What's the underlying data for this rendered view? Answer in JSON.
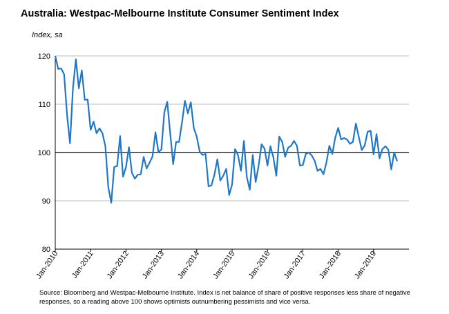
{
  "chart_data": {
    "type": "line",
    "title": "Australia: Westpac-Melbourne Institute Consumer Sentiment Index",
    "subtitle": "Index, sa",
    "ylim": [
      80,
      120
    ],
    "yticks": [
      80,
      90,
      100,
      110,
      120
    ],
    "reference_line": 100,
    "grid": "horizontal",
    "x_start": "Jan-2010",
    "x_labels": [
      "Jan-2010",
      "Jan-2011",
      "Jan-2012",
      "Jan-2013",
      "Jan-2014",
      "Jan-2015",
      "Jan-2016",
      "Jan-2017",
      "Jan-2018",
      "Jan-2019"
    ],
    "line_color": "#1f77c8",
    "series": [
      {
        "values": [
          120.0,
          117.3,
          117.4,
          116.2,
          107.8,
          101.9,
          113.3,
          119.3,
          113.3,
          117.0,
          110.9,
          111.0,
          104.7,
          106.4,
          104.0,
          105.0,
          104.0,
          101.3,
          92.8,
          89.6,
          97.0,
          97.2,
          103.4,
          95.0,
          97.0,
          101.1,
          95.8,
          94.6,
          95.4,
          95.5,
          99.1,
          96.7,
          97.9,
          99.2,
          104.2,
          100.1,
          100.6,
          108.3,
          110.5,
          104.0,
          97.6,
          102.2,
          102.2,
          106.2,
          110.7,
          108.1,
          110.4,
          105.1,
          103.3,
          100.2,
          99.5,
          99.7,
          93.0,
          93.2,
          95.4,
          98.6,
          94.2,
          95.2,
          96.6,
          91.2,
          93.4,
          100.7,
          99.5,
          96.2,
          102.4,
          94.9,
          92.3,
          99.5,
          93.9,
          97.3,
          101.7,
          100.8,
          97.3,
          101.3,
          99.0,
          95.2,
          103.3,
          102.2,
          99.1,
          101.0,
          101.4,
          102.4,
          101.4,
          97.3,
          97.4,
          99.7,
          100.0,
          99.4,
          98.3,
          96.2,
          96.6,
          95.5,
          97.9,
          101.4,
          99.7,
          103.1,
          105.1,
          102.7,
          103.0,
          102.7,
          101.8,
          102.2,
          106.0,
          103.2,
          100.5,
          101.5,
          104.3,
          104.5,
          99.6,
          103.8,
          98.8,
          100.7,
          101.3,
          100.6,
          96.5,
          100.0,
          98.2
        ]
      }
    ],
    "source_note": "Source: Bloomberg and Westpac-Melbourne Institute.  Index is net balance of share of positive responses less share of negative responses, so a reading above 100 shows optimists outnumbering pessimists and vice versa."
  }
}
